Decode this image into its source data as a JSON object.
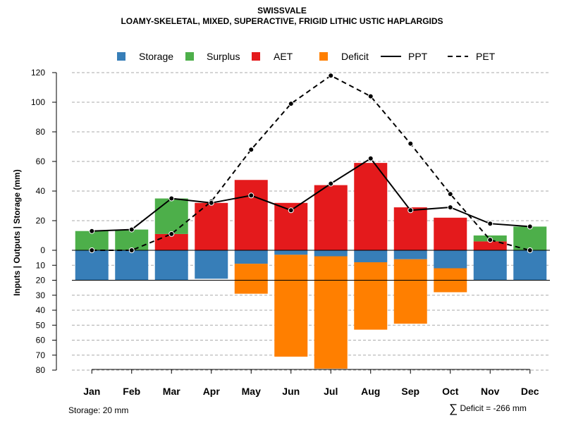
{
  "chart_data": {
    "type": "bar",
    "title": "SWISSVALE",
    "subtitle": "LOAMY-SKELETAL, MIXED, SUPERACTIVE, FRIGID LITHIC USTIC HAPLARGIDS",
    "ylabel": "Inputs | Outputs | Storage    (mm)",
    "categories": [
      "Jan",
      "Feb",
      "Mar",
      "Apr",
      "May",
      "Jun",
      "Jul",
      "Aug",
      "Sep",
      "Oct",
      "Nov",
      "Dec"
    ],
    "upper_ylim": [
      0,
      120
    ],
    "upper_ticks": [
      "0",
      "20",
      "40",
      "60",
      "80",
      "100",
      "120"
    ],
    "lower_ylim": [
      0,
      80
    ],
    "lower_ticks": [
      "10",
      "20",
      "30",
      "40",
      "50",
      "60",
      "70",
      "80"
    ],
    "series": [
      {
        "name": "Storage",
        "color": "#377EB8",
        "kind": "bar-below",
        "values": [
          20,
          20,
          20,
          19,
          9,
          3,
          4,
          8,
          6,
          12,
          20,
          20
        ]
      },
      {
        "name": "Surplus",
        "color": "#4DAF4A",
        "kind": "bar-above-stacked",
        "values": [
          13,
          14,
          24,
          0,
          0,
          0,
          0,
          0,
          0,
          0,
          4,
          16
        ]
      },
      {
        "name": "AET",
        "color": "#E41A1C",
        "kind": "bar-above",
        "values": [
          0,
          0,
          11,
          32,
          47.5,
          32,
          44,
          59,
          29,
          22,
          6,
          0
        ]
      },
      {
        "name": "Deficit",
        "color": "#FF7F00",
        "kind": "bar-below-stacked",
        "values": [
          0,
          0,
          0,
          0,
          20,
          68,
          75,
          45,
          43,
          16,
          0,
          0
        ]
      },
      {
        "name": "PPT",
        "color": "#000000",
        "kind": "line-solid",
        "values": [
          13,
          14,
          35,
          32,
          37,
          27,
          45,
          62,
          27,
          29,
          18,
          16
        ]
      },
      {
        "name": "PET",
        "color": "#000000",
        "kind": "line-dashed",
        "values": [
          0,
          0,
          11,
          33,
          68,
          99,
          118,
          104,
          72,
          38,
          7,
          0
        ]
      }
    ],
    "legend_position": "top",
    "grid": true,
    "footer_storage": "Storage: 20 mm",
    "footer_deficit_symbol": "∑",
    "footer_deficit": "Deficit = -266 mm"
  }
}
